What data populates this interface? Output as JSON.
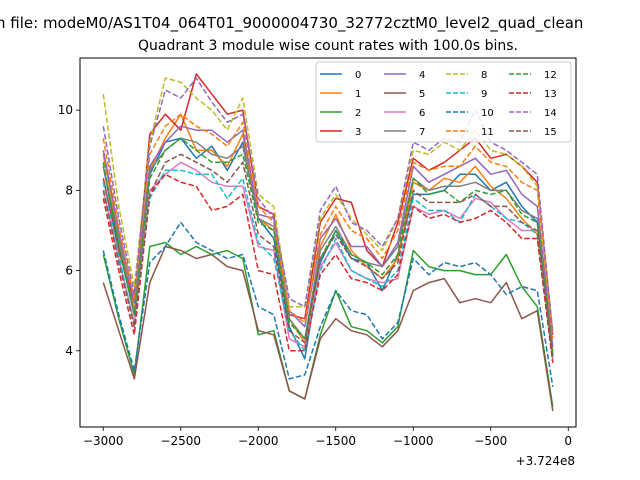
{
  "figure": {
    "suptitle": "n file: modeM0/AS1T04_064T01_9000004730_32772cztM0_level2_quad_clean",
    "offset_label": "+3.724e8"
  },
  "chart_data": {
    "type": "line",
    "title": "Quadrant 3 module wise count rates with 100.0s bins.",
    "xlabel": "",
    "ylabel": "",
    "xlim": [
      -3150,
      50
    ],
    "ylim": [
      2.1,
      11.3
    ],
    "xticks": [
      -3000,
      -2500,
      -2000,
      -1500,
      -1000,
      -500,
      0
    ],
    "yticks": [
      4,
      6,
      8,
      10
    ],
    "grid": false,
    "legend": {
      "placement": "top-right",
      "columns": 4
    },
    "x": [
      -3000,
      -2900,
      -2800,
      -2700,
      -2600,
      -2500,
      -2400,
      -2300,
      -2200,
      -2100,
      -2000,
      -1900,
      -1800,
      -1700,
      -1600,
      -1500,
      -1400,
      -1300,
      -1200,
      -1100,
      -1000,
      -900,
      -800,
      -700,
      -600,
      -500,
      -400,
      -300,
      -200,
      -100
    ],
    "series": [
      {
        "name": "0",
        "color": "#1f77b4",
        "dash": "solid",
        "values": [
          8.6,
          6.6,
          4.9,
          8.4,
          9.2,
          9.3,
          8.8,
          9.1,
          8.5,
          9.2,
          7.3,
          6.8,
          4.6,
          3.8,
          6.2,
          7.0,
          6.3,
          6.2,
          5.5,
          6.4,
          7.9,
          7.9,
          8.0,
          8.4,
          8.4,
          8.0,
          8.2,
          7.6,
          7.2,
          3.8
        ]
      },
      {
        "name": "1",
        "color": "#ff7f0e",
        "dash": "solid",
        "values": [
          8.9,
          6.9,
          5.0,
          8.5,
          9.3,
          9.9,
          9.0,
          9.0,
          8.6,
          9.4,
          7.3,
          7.0,
          4.8,
          4.2,
          6.6,
          7.4,
          6.5,
          6.1,
          5.8,
          6.3,
          8.2,
          8.0,
          8.3,
          8.2,
          8.6,
          8.1,
          7.8,
          7.3,
          6.9,
          4.0
        ]
      },
      {
        "name": "2",
        "color": "#2ca02c",
        "dash": "solid",
        "values": [
          6.4,
          4.8,
          3.4,
          6.6,
          6.7,
          6.4,
          6.6,
          6.4,
          6.5,
          6.3,
          4.4,
          4.5,
          3.0,
          2.8,
          4.4,
          5.5,
          4.6,
          4.5,
          4.2,
          4.6,
          6.5,
          6.1,
          6.0,
          6.0,
          5.9,
          5.9,
          6.4,
          5.6,
          5.1,
          2.6
        ]
      },
      {
        "name": "3",
        "color": "#d62728",
        "dash": "solid",
        "values": [
          8.3,
          6.5,
          5.2,
          9.4,
          9.9,
          9.5,
          10.9,
          10.4,
          9.9,
          10.0,
          7.6,
          7.4,
          4.9,
          4.8,
          7.2,
          7.8,
          7.7,
          6.5,
          6.1,
          7.2,
          8.8,
          8.5,
          8.7,
          9.0,
          9.3,
          8.8,
          8.9,
          8.6,
          8.2,
          4.4
        ]
      },
      {
        "name": "4",
        "color": "#9467bd",
        "dash": "solid",
        "values": [
          9.0,
          7.0,
          5.2,
          8.6,
          9.2,
          9.6,
          9.5,
          9.5,
          9.2,
          9.5,
          7.4,
          7.3,
          5.0,
          4.6,
          6.8,
          7.3,
          6.6,
          6.6,
          6.1,
          6.7,
          8.6,
          8.2,
          8.4,
          8.6,
          8.8,
          8.4,
          8.5,
          7.9,
          7.6,
          4.1
        ]
      },
      {
        "name": "5",
        "color": "#8c564b",
        "dash": "solid",
        "values": [
          5.7,
          4.5,
          3.3,
          5.7,
          6.6,
          6.5,
          6.3,
          6.4,
          6.1,
          6.0,
          4.5,
          4.4,
          3.0,
          2.8,
          4.3,
          4.8,
          4.5,
          4.4,
          4.1,
          4.5,
          5.5,
          5.7,
          5.8,
          5.2,
          5.3,
          5.2,
          5.7,
          4.8,
          5.0,
          2.5
        ]
      },
      {
        "name": "6",
        "color": "#e377c2",
        "dash": "solid",
        "values": [
          8.0,
          6.3,
          4.7,
          8.0,
          8.4,
          8.7,
          8.5,
          8.2,
          8.1,
          8.1,
          6.6,
          6.5,
          4.3,
          4.1,
          6.1,
          6.7,
          6.0,
          5.8,
          5.7,
          5.8,
          7.6,
          7.4,
          7.5,
          7.3,
          7.8,
          7.7,
          7.3,
          7.0,
          7.0,
          3.8
        ]
      },
      {
        "name": "7",
        "color": "#7f7f7f",
        "dash": "solid",
        "values": [
          8.6,
          6.8,
          4.9,
          8.5,
          9.0,
          9.3,
          9.2,
          8.9,
          8.8,
          9.1,
          7.3,
          7.1,
          4.8,
          4.3,
          6.5,
          7.1,
          6.4,
          6.2,
          6.1,
          6.6,
          8.3,
          8.0,
          8.1,
          8.1,
          8.2,
          8.0,
          8.0,
          7.5,
          7.3,
          3.9
        ]
      },
      {
        "name": "8",
        "color": "#bcbd22",
        "dash": "dashed",
        "values": [
          10.4,
          7.6,
          5.6,
          9.2,
          10.8,
          10.7,
          10.3,
          10.0,
          9.5,
          10.3,
          7.9,
          7.6,
          5.1,
          5.1,
          7.3,
          7.9,
          7.3,
          6.9,
          6.5,
          7.3,
          9.0,
          8.9,
          9.2,
          9.0,
          9.5,
          9.0,
          8.9,
          8.6,
          8.1,
          4.5
        ]
      },
      {
        "name": "9",
        "color": "#17becf",
        "dash": "dashed",
        "values": [
          8.2,
          6.4,
          4.6,
          7.8,
          8.5,
          8.5,
          8.4,
          8.4,
          7.8,
          8.3,
          6.7,
          6.3,
          4.5,
          4.0,
          6.0,
          6.8,
          6.0,
          5.8,
          5.6,
          6.0,
          7.8,
          7.5,
          7.5,
          7.2,
          7.9,
          7.6,
          7.3,
          7.2,
          6.9,
          3.7
        ]
      },
      {
        "name": "10",
        "color": "#1f77b4",
        "dash": "dashed",
        "values": [
          6.5,
          4.9,
          3.5,
          6.2,
          6.6,
          7.2,
          6.7,
          6.5,
          6.3,
          6.4,
          5.1,
          4.9,
          3.3,
          3.4,
          4.6,
          5.5,
          5.0,
          4.9,
          4.3,
          4.7,
          6.3,
          5.9,
          6.2,
          6.1,
          6.2,
          5.9,
          5.4,
          5.6,
          5.5,
          3.1
        ]
      },
      {
        "name": "11",
        "color": "#ff7f0e",
        "dash": "dashed",
        "values": [
          9.3,
          7.1,
          5.3,
          8.9,
          9.6,
          9.9,
          9.6,
          9.4,
          9.1,
          9.7,
          7.6,
          7.2,
          5.0,
          4.7,
          6.9,
          7.6,
          7.0,
          6.8,
          6.3,
          7.0,
          8.7,
          8.5,
          8.6,
          8.6,
          9.1,
          8.7,
          8.6,
          8.2,
          8.0,
          4.3
        ]
      },
      {
        "name": "12",
        "color": "#2ca02c",
        "dash": "dashed",
        "values": [
          8.7,
          6.6,
          4.9,
          8.3,
          9.0,
          9.3,
          9.0,
          8.7,
          8.7,
          8.9,
          7.2,
          7.0,
          4.7,
          4.3,
          6.3,
          7.0,
          6.4,
          6.2,
          5.9,
          6.4,
          8.3,
          7.9,
          8.0,
          7.7,
          8.0,
          7.9,
          8.0,
          7.4,
          7.2,
          3.9
        ]
      },
      {
        "name": "13",
        "color": "#d62728",
        "dash": "dashed",
        "values": [
          7.8,
          6.0,
          4.4,
          7.9,
          8.4,
          8.2,
          8.1,
          7.5,
          7.6,
          7.9,
          6.0,
          5.9,
          4.0,
          4.0,
          5.9,
          6.4,
          5.8,
          5.7,
          5.5,
          5.9,
          7.6,
          7.3,
          7.4,
          7.2,
          7.3,
          7.5,
          7.2,
          6.8,
          6.8,
          3.7
        ]
      },
      {
        "name": "14",
        "color": "#9467bd",
        "dash": "dashed",
        "values": [
          9.6,
          7.3,
          5.4,
          9.1,
          10.5,
          10.3,
          10.8,
          10.2,
          9.7,
          9.9,
          7.8,
          7.3,
          5.3,
          5.1,
          7.5,
          8.1,
          7.2,
          7.0,
          6.6,
          7.3,
          9.2,
          9.0,
          9.3,
          9.2,
          10.0,
          9.2,
          9.0,
          8.7,
          8.4,
          4.4
        ]
      },
      {
        "name": "15",
        "color": "#8c564b",
        "dash": "dashed",
        "values": [
          8.0,
          6.2,
          4.6,
          7.9,
          8.7,
          8.9,
          8.7,
          8.5,
          8.2,
          8.7,
          6.9,
          6.6,
          4.5,
          4.2,
          6.3,
          6.9,
          6.3,
          6.1,
          5.8,
          6.2,
          8.0,
          7.7,
          7.7,
          7.7,
          7.9,
          7.6,
          7.6,
          7.2,
          7.0,
          3.8
        ]
      }
    ]
  }
}
